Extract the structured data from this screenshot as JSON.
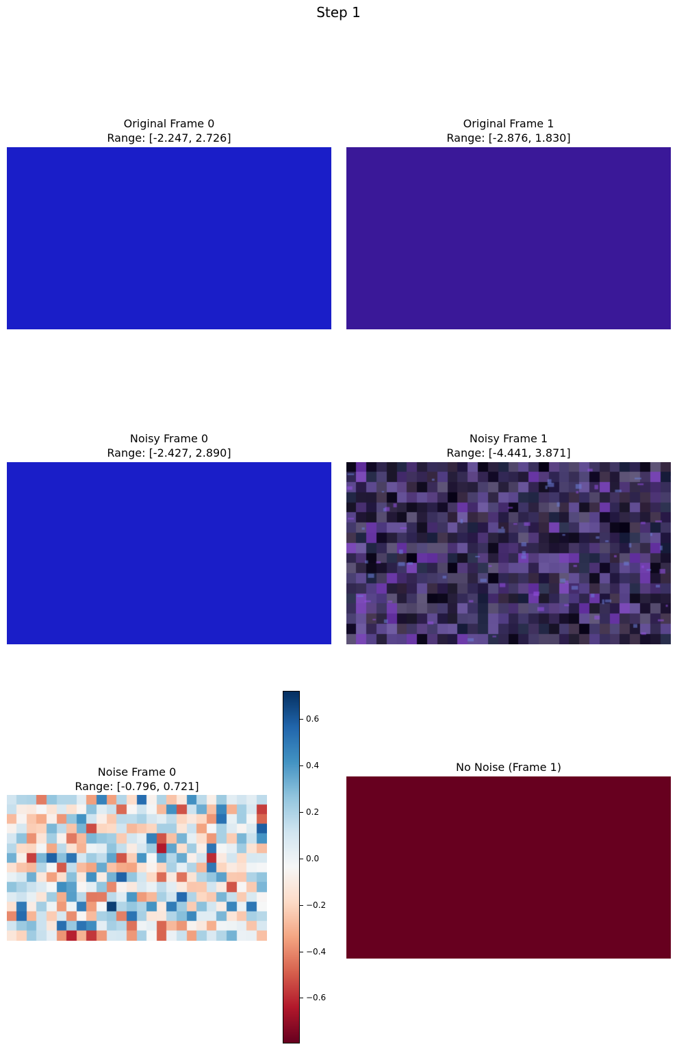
{
  "suptitle": "Step 1",
  "panels": [
    {
      "title": "Original Frame 0",
      "range": "Range: [-2.247, 2.726]",
      "fill": "#1a1ec8"
    },
    {
      "title": "Original Frame 1",
      "range": "Range: [-2.876, 1.830]",
      "fill": "#3a1898"
    },
    {
      "title": "Noisy Frame 0",
      "range": "Range: [-2.427, 2.890]",
      "fill": "#1a1ec8"
    },
    {
      "title": "Noisy Frame 1",
      "range": "Range: [-4.441, 3.871]"
    },
    {
      "title": "Noise Frame 0",
      "range": "Range: [-0.796, 0.721]"
    },
    {
      "title": "No Noise (Frame 1)",
      "fill": "#67001f"
    }
  ],
  "colorbar": {
    "colormap": "RdBu",
    "vmin": -0.796,
    "vmax": 0.721,
    "ticks": [
      "0.6",
      "0.4",
      "0.2",
      "0.0",
      "−0.2",
      "−0.4",
      "−0.6"
    ],
    "tick_values": [
      0.6,
      0.4,
      0.2,
      0.0,
      -0.2,
      -0.4,
      -0.6
    ]
  },
  "chart_data": {
    "type": "heatmap",
    "title": "Step 1",
    "heatmap": {
      "title": "Noise Frame 0",
      "subtitle": "Range: [-0.796, 0.721]",
      "vmin": -0.796,
      "vmax": 0.721,
      "grid_cols": 26,
      "grid_rows": 15
    }
  }
}
